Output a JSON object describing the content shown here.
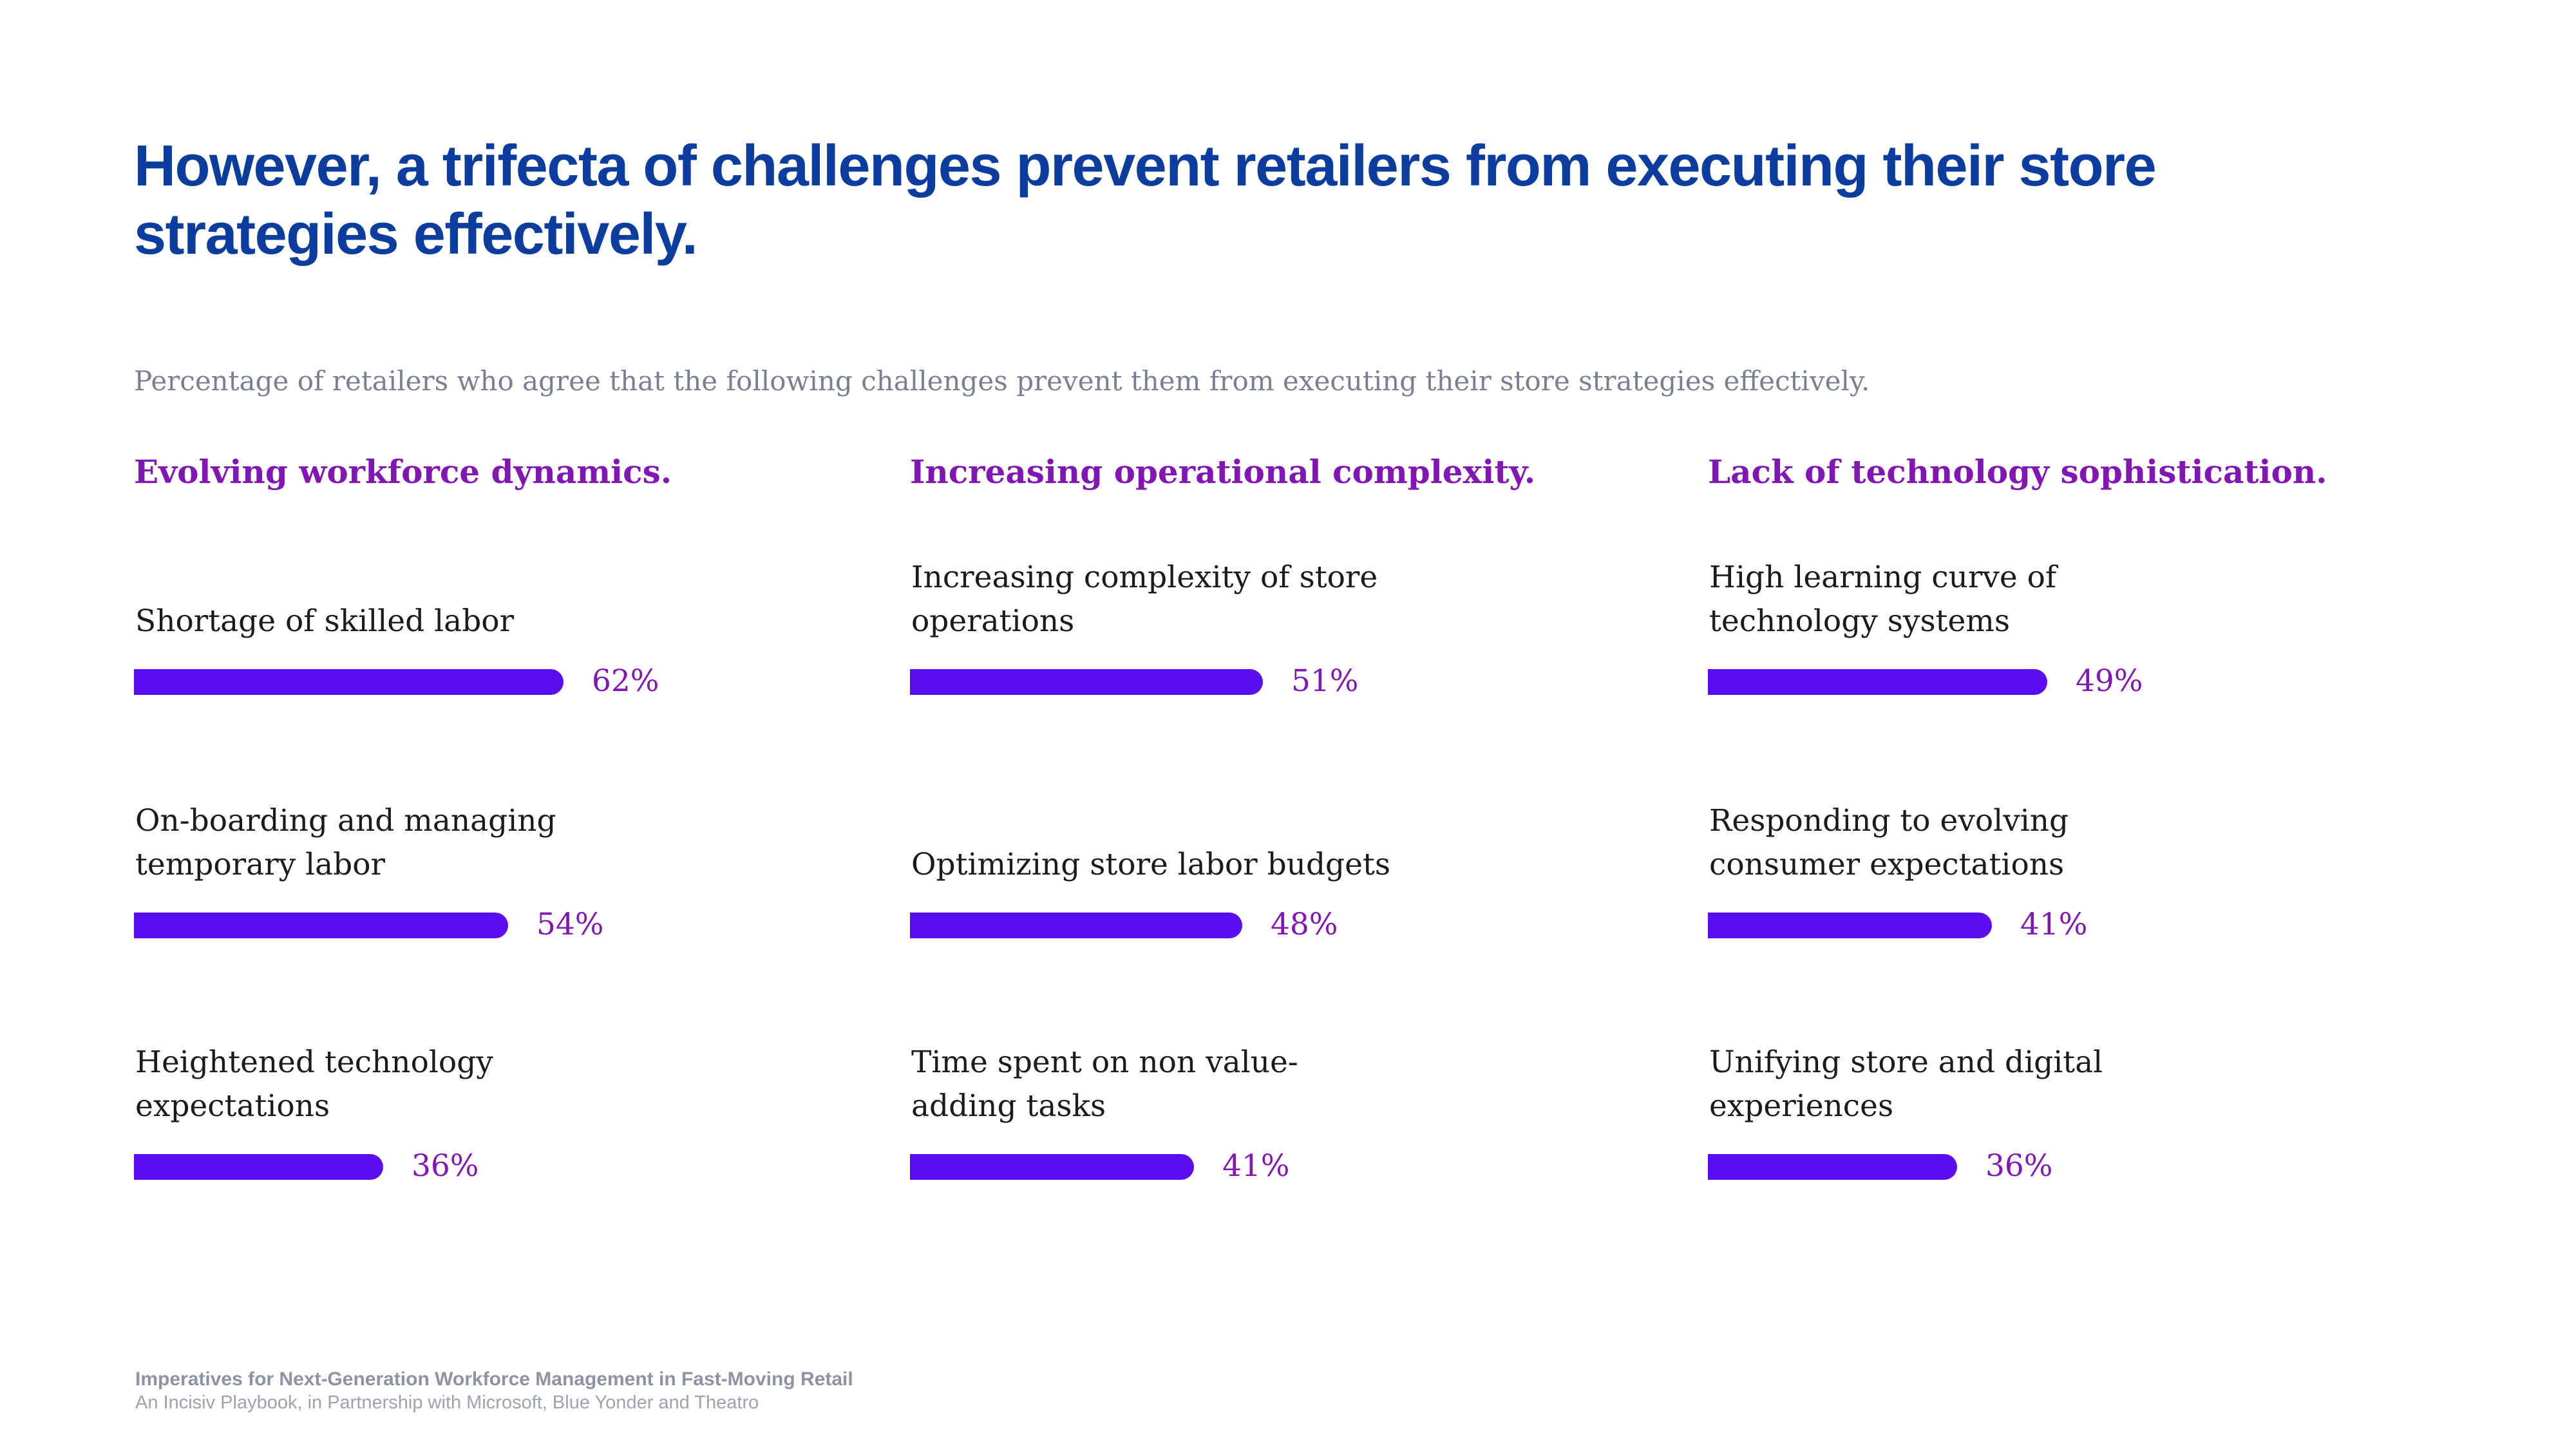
{
  "title": "However, a trifecta of challenges prevent retailers from executing their store strategies effectively.",
  "subtitle": "Percentage of retailers who agree that the following challenges prevent them from executing their store strategies effectively.",
  "colors": {
    "title": "#0a3d9e",
    "bar": "#5a0ef0",
    "group_title": "#8216b5",
    "value": "#8216b5"
  },
  "chart_data": {
    "type": "bar",
    "orientation": "horizontal",
    "unit": "%",
    "xlim": [
      0,
      100
    ],
    "grid": false,
    "groups": [
      {
        "title": "Evolving workforce dynamics.",
        "items": [
          {
            "label": "Shortage of skilled labor",
            "value": 62,
            "value_label": "62%"
          },
          {
            "label": "On-boarding and managing temporary labor",
            "value": 54,
            "value_label": "54%"
          },
          {
            "label": "Heightened technology expectations",
            "value": 36,
            "value_label": "36%"
          }
        ]
      },
      {
        "title": "Increasing operational complexity.",
        "items": [
          {
            "label": "Increasing complexity of store operations",
            "value": 51,
            "value_label": "51%"
          },
          {
            "label": "Optimizing store labor budgets",
            "value": 48,
            "value_label": "48%"
          },
          {
            "label": "Time spent on non value-adding tasks",
            "value": 41,
            "value_label": "41%"
          }
        ]
      },
      {
        "title": "Lack of technology sophistication.",
        "items": [
          {
            "label": "High learning curve of technology systems",
            "value": 49,
            "value_label": "49%"
          },
          {
            "label": "Responding to evolving consumer expectations",
            "value": 41,
            "value_label": "41%"
          },
          {
            "label": "Unifying store and digital experiences",
            "value": 36,
            "value_label": "36%"
          }
        ]
      }
    ]
  },
  "footer": {
    "line1": "Imperatives for Next-Generation Workforce Management in Fast-Moving Retail",
    "line2": "An Incisiv Playbook, in Partnership with Microsoft, Blue Yonder and Theatro"
  }
}
